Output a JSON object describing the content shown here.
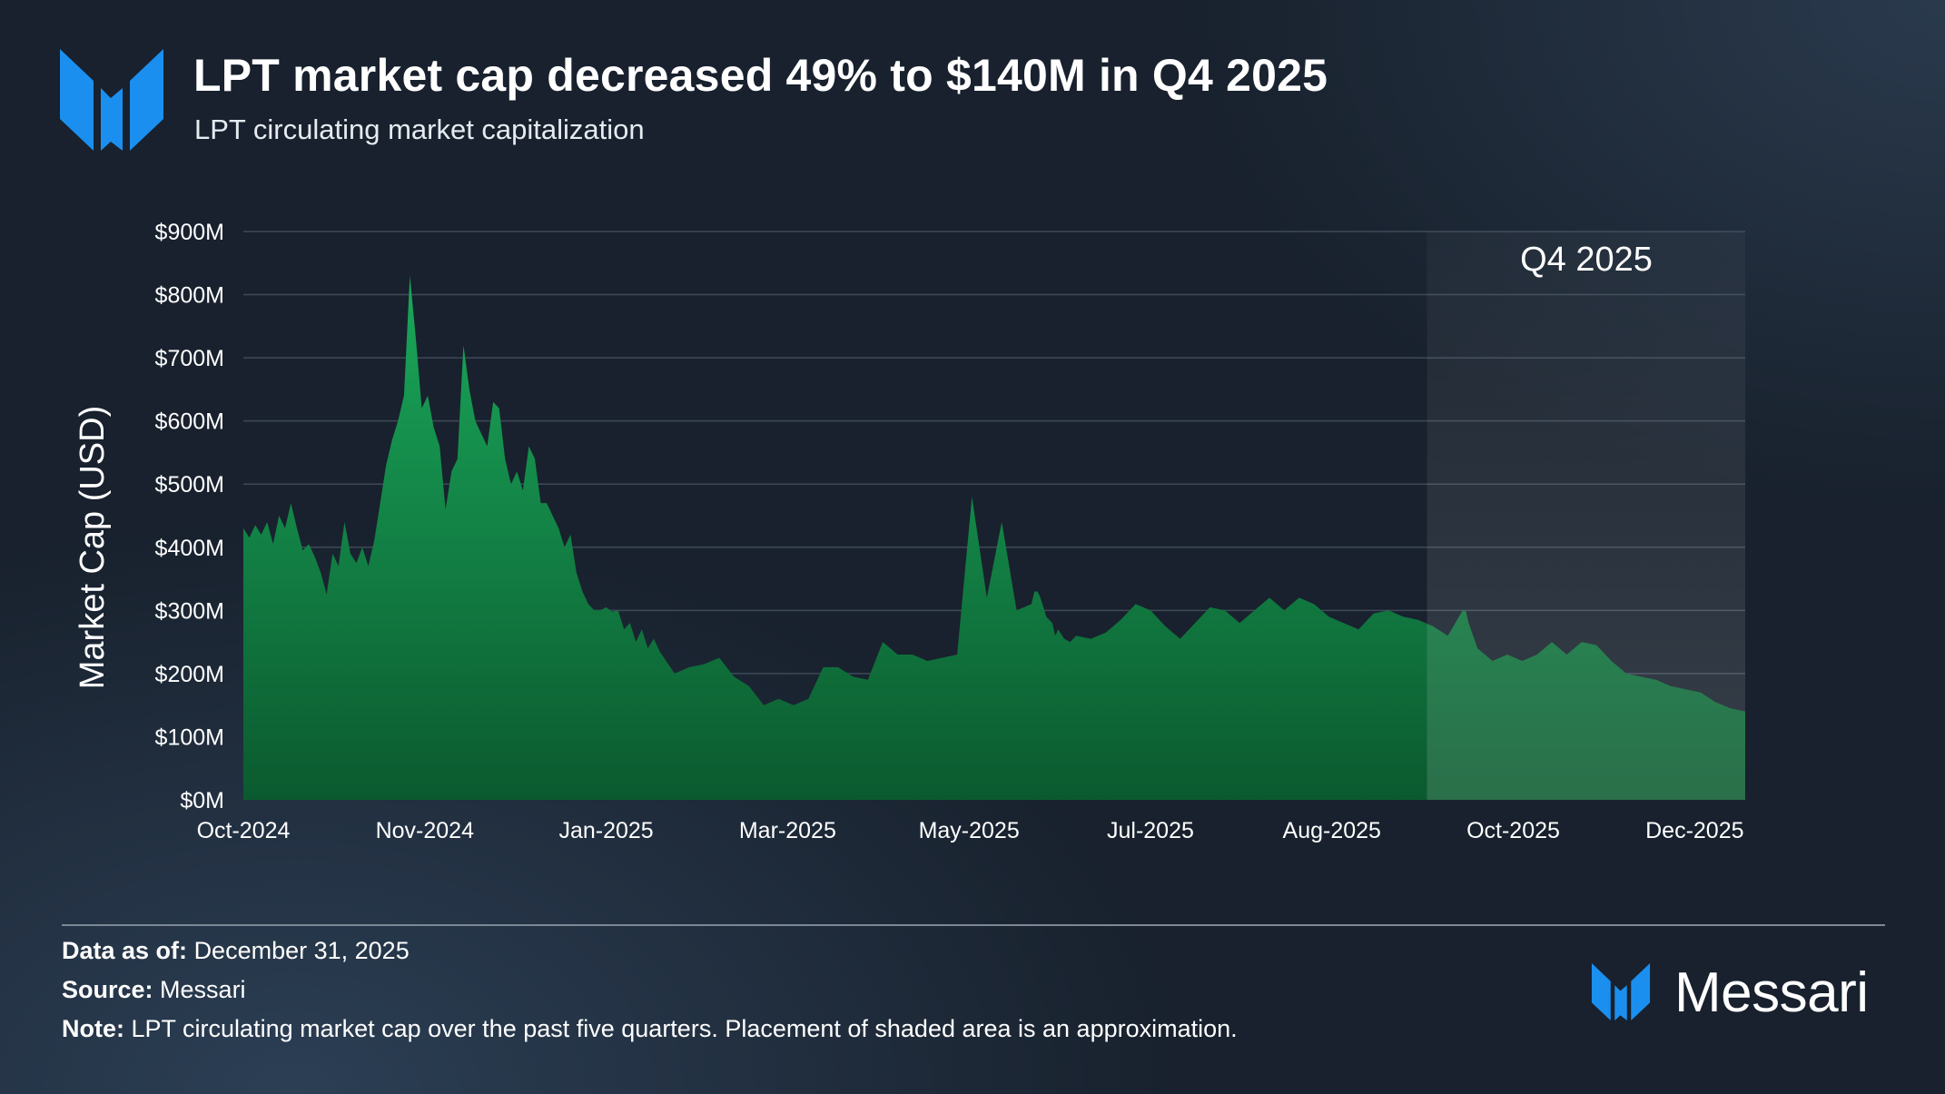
{
  "header": {
    "title": "LPT market cap decreased 49% to $140M in Q4 2025",
    "subtitle": "LPT circulating market capitalization"
  },
  "colors": {
    "brand_blue": "#1b8fef",
    "area_top": "#1a9e55",
    "area_bottom": "#0b5b30",
    "grid": "#3e4a58"
  },
  "chart_data": {
    "type": "area",
    "title": "LPT market cap decreased 49% to $140M in Q4 2025",
    "subtitle": "LPT circulating market capitalization",
    "xlabel": "",
    "ylabel": "Market Cap (USD)",
    "ylim": [
      0,
      900
    ],
    "y_unit": "$M",
    "y_ticks": [
      0,
      100,
      200,
      300,
      400,
      500,
      600,
      700,
      800,
      900
    ],
    "y_tick_labels": [
      "$0M",
      "$100M",
      "$200M",
      "$300M",
      "$400M",
      "$500M",
      "$600M",
      "$700M",
      "$800M",
      "$900M"
    ],
    "x_ticks": [
      0,
      61,
      122,
      183,
      244,
      305,
      366,
      427,
      488
    ],
    "x_tick_labels": [
      "Oct-2024",
      "Nov-2024",
      "Jan-2025",
      "Mar-2025",
      "May-2025",
      "Jul-2025",
      "Aug-2025",
      "Oct-2025",
      "Dec-2025"
    ],
    "x_range": [
      0,
      505
    ],
    "grid": true,
    "shaded_region": {
      "start": 398,
      "end": 505,
      "label": "Q4 2025"
    },
    "series": [
      {
        "name": "LPT circulating market cap",
        "x": [
          0,
          2,
          4,
          6,
          8,
          10,
          12,
          14,
          16,
          18,
          20,
          22,
          24,
          26,
          28,
          30,
          32,
          34,
          36,
          38,
          40,
          42,
          44,
          46,
          48,
          50,
          52,
          54,
          56,
          58,
          60,
          62,
          64,
          66,
          68,
          70,
          72,
          74,
          76,
          78,
          80,
          82,
          84,
          86,
          88,
          90,
          92,
          94,
          96,
          98,
          100,
          102,
          104,
          106,
          108,
          110,
          112,
          114,
          116,
          118,
          120,
          122,
          124,
          126,
          128,
          130,
          132,
          134,
          136,
          138,
          140,
          145,
          150,
          155,
          160,
          165,
          170,
          175,
          180,
          185,
          190,
          195,
          200,
          205,
          210,
          215,
          220,
          225,
          230,
          235,
          240,
          245,
          250,
          255,
          260,
          265,
          266,
          267,
          268,
          270,
          272,
          273,
          274,
          276,
          278,
          280,
          285,
          290,
          295,
          300,
          305,
          310,
          315,
          320,
          325,
          330,
          335,
          340,
          345,
          350,
          355,
          360,
          365,
          370,
          375,
          380,
          385,
          390,
          395,
          400,
          405,
          410,
          411,
          412,
          415,
          420,
          425,
          430,
          435,
          440,
          445,
          450,
          455,
          460,
          465,
          470,
          475,
          480,
          485,
          490,
          495,
          500,
          505
        ],
        "values": [
          430,
          415,
          435,
          420,
          440,
          405,
          450,
          430,
          470,
          430,
          395,
          405,
          385,
          360,
          325,
          390,
          370,
          440,
          390,
          375,
          400,
          370,
          410,
          470,
          530,
          570,
          600,
          640,
          830,
          730,
          620,
          640,
          590,
          560,
          460,
          520,
          540,
          720,
          650,
          600,
          580,
          560,
          630,
          620,
          540,
          500,
          520,
          490,
          560,
          540,
          470,
          470,
          450,
          430,
          400,
          420,
          360,
          330,
          310,
          300,
          300,
          305,
          298,
          300,
          270,
          280,
          250,
          270,
          240,
          255,
          235,
          200,
          210,
          215,
          225,
          195,
          180,
          150,
          160,
          150,
          160,
          210,
          210,
          195,
          190,
          250,
          230,
          230,
          220,
          225,
          230,
          480,
          320,
          440,
          300,
          310,
          330,
          330,
          320,
          290,
          280,
          260,
          270,
          255,
          250,
          260,
          255,
          265,
          285,
          310,
          300,
          275,
          255,
          280,
          305,
          300,
          280,
          300,
          320,
          300,
          320,
          310,
          290,
          280,
          270,
          295,
          300,
          290,
          285,
          275,
          260,
          300,
          300,
          280,
          240,
          220,
          230,
          220,
          230,
          250,
          230,
          250,
          245,
          220,
          200,
          195,
          190,
          180,
          175,
          170,
          155,
          145,
          140
        ]
      }
    ]
  },
  "footer": {
    "data_as_of_label": "Data as of:",
    "data_as_of_value": "December 31, 2025",
    "source_label": "Source:",
    "source_value": "Messari",
    "note_label": "Note:",
    "note_value": "LPT circulating market cap over the past five quarters. Placement of shaded area is an approximation.",
    "brand_name": "Messari"
  }
}
